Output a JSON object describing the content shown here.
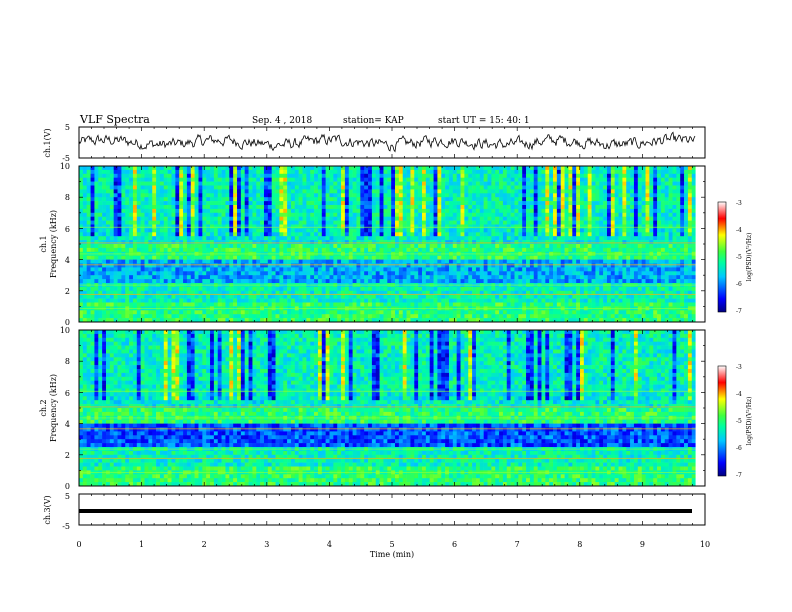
{
  "header": {
    "title": "VLF Spectra",
    "date": "Sep. 4 , 2018",
    "station": "station= KAP",
    "start_ut": "start  UT =   15: 40: 1"
  },
  "chart_data": [
    {
      "type": "line",
      "name": "ch1-waveform",
      "ylabel": "ch.1(V)",
      "ylim": [
        -5,
        5
      ],
      "yticks": [
        "5",
        "-5"
      ],
      "xlim": [
        0,
        10
      ],
      "description_values": "continuous noisy waveform between about -3 and 3 V over 0 to 9.8 min"
    },
    {
      "type": "heatmap",
      "name": "ch1-spectrogram",
      "ylabel": "ch.1\nFrequency (kHz)",
      "ylim": [
        0,
        10
      ],
      "yticks": [
        "0",
        "2",
        "4",
        "6",
        "8",
        "10"
      ],
      "xlim": [
        0,
        9.85
      ],
      "colorbar": {
        "label": "log(PSD)(V²/Hz)",
        "range": [
          -7,
          -3
        ],
        "ticks": [
          "-3",
          "-4",
          "-5",
          "-6",
          "-7"
        ]
      }
    },
    {
      "type": "heatmap",
      "name": "ch2-spectrogram",
      "ylabel": "ch.2\nFrequency (kHz)",
      "ylim": [
        0,
        10
      ],
      "yticks": [
        "0",
        "2",
        "4",
        "6",
        "8",
        "10"
      ],
      "xlim": [
        0,
        9.85
      ],
      "colorbar": {
        "label": "log(PSD)(V²/Hz)",
        "range": [
          -7,
          -3
        ],
        "ticks": [
          "-3",
          "-4",
          "-5",
          "-6",
          "-7"
        ]
      }
    },
    {
      "type": "line",
      "name": "ch3-waveform",
      "ylabel": "ch.3(V)",
      "ylim": [
        -5,
        5
      ],
      "yticks": [
        "5",
        "-5"
      ],
      "xlim": [
        0,
        10
      ],
      "values_constant": 0
    }
  ],
  "xaxis": {
    "label": "Time  (min)",
    "ticks": [
      "0",
      "1",
      "2",
      "3",
      "4",
      "5",
      "6",
      "7",
      "8",
      "9",
      "10"
    ]
  },
  "labels": {
    "ch1_v": "ch.1(V)",
    "ch1": "ch.1",
    "ch2": "ch.2",
    "freq": "Frequency  (kHz)",
    "ch3_v": "ch.3(V)",
    "cb_label": "log(PSD)(V²/Hz)"
  }
}
